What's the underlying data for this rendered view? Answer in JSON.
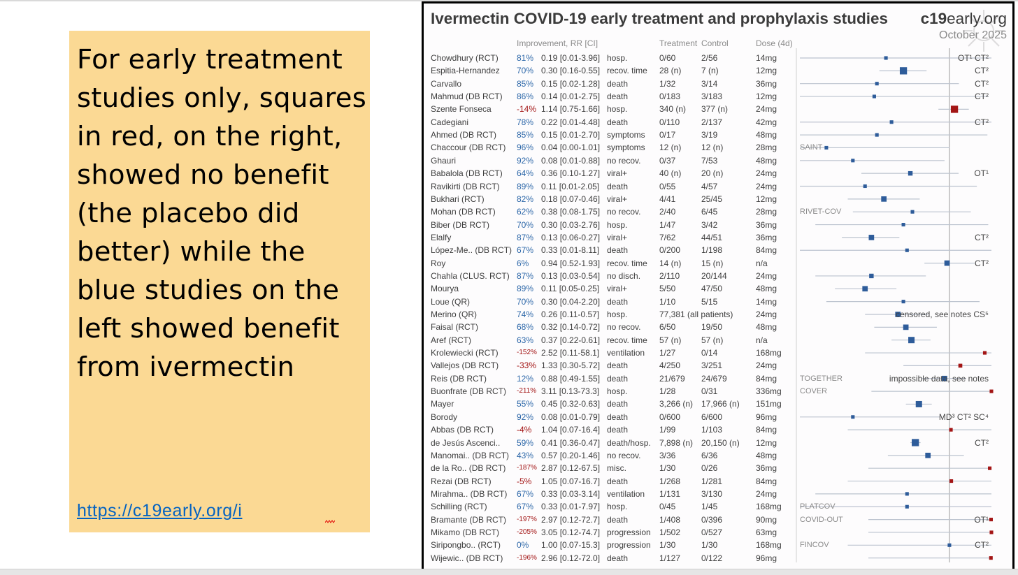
{
  "note": {
    "text": "For early treatment studies only, squares in red, on the right, showed no benefit (the placebo did better) while the blue studies on the left showed benefit from ivermectin",
    "link": "https://c19early.org/i"
  },
  "figure": {
    "title": "Ivermectin COVID-19 early treatment and prophylaxis studies",
    "site_bold": "c19",
    "site_rest": "early.org",
    "date": "October 2025",
    "headers": {
      "improvement": "Improvement, RR [CI]",
      "treatment": "Treatment",
      "control": "Control",
      "dose": "Dose (4d)"
    },
    "colors": {
      "benefit": "#2e5c9a",
      "harm": "#a31515",
      "text": "#3d3d3d",
      "muted": "#8a8a8a"
    },
    "studies": [
      {
        "study": "Chowdhury (RCT)",
        "imp": "81%",
        "rr": "0.19 [0.01-3.96]",
        "outcome": "hosp.",
        "treatment": "0/60",
        "control": "2/56",
        "dose": "14mg",
        "note": "OT¹ CT²",
        "rr_val": 0.19,
        "lo": 0.01,
        "hi": 3.96,
        "weight": 1
      },
      {
        "study": "Espitia-Hernandez",
        "imp": "70%",
        "rr": "0.30 [0.16-0.55]",
        "outcome": "recov. time",
        "treatment": "28 (n)",
        "control": "7 (n)",
        "dose": "12mg",
        "note": "CT²",
        "rr_val": 0.3,
        "lo": 0.16,
        "hi": 0.55,
        "weight": 3
      },
      {
        "study": "Carvallo",
        "imp": "85%",
        "rr": "0.15 [0.02-1.28]",
        "outcome": "death",
        "treatment": "1/32",
        "control": "3/14",
        "dose": "36mg",
        "note": "CT²",
        "rr_val": 0.15,
        "lo": 0.02,
        "hi": 1.28,
        "weight": 1
      },
      {
        "study": "Mahmud (DB RCT)",
        "imp": "86%",
        "rr": "0.14 [0.01-2.75]",
        "outcome": "death",
        "treatment": "0/183",
        "control": "3/183",
        "dose": "12mg",
        "note": "CT²",
        "rr_val": 0.14,
        "lo": 0.01,
        "hi": 2.75,
        "weight": 1
      },
      {
        "study": "Szente Fonseca",
        "imp": "-14%",
        "rr": "1.14 [0.75-1.66]",
        "outcome": "hosp.",
        "treatment": "340 (n)",
        "control": "377 (n)",
        "dose": "24mg",
        "note": "",
        "rr_val": 1.14,
        "lo": 0.75,
        "hi": 1.66,
        "weight": 3
      },
      {
        "study": "Cadegiani",
        "imp": "78%",
        "rr": "0.22 [0.01-4.48]",
        "outcome": "death",
        "treatment": "0/110",
        "control": "2/137",
        "dose": "42mg",
        "note": "CT²",
        "rr_val": 0.22,
        "lo": 0.01,
        "hi": 4.48,
        "weight": 1
      },
      {
        "study": "Ahmed (DB RCT)",
        "imp": "85%",
        "rr": "0.15 [0.01-2.70]",
        "outcome": "symptoms",
        "treatment": "0/17",
        "control": "3/19",
        "dose": "48mg",
        "note": "",
        "rr_val": 0.15,
        "lo": 0.01,
        "hi": 2.7,
        "weight": 1
      },
      {
        "study": "Chaccour (DB RCT)",
        "imp": "96%",
        "rr": "0.04 [0.00-1.01]",
        "outcome": "symptoms",
        "treatment": "12 (n)",
        "control": "12 (n)",
        "dose": "28mg",
        "note": "",
        "tag": "SAINT",
        "rr_val": 0.04,
        "lo": 0.002,
        "hi": 1.01,
        "weight": 1
      },
      {
        "study": "Ghauri",
        "imp": "92%",
        "rr": "0.08 [0.01-0.88]",
        "outcome": "no recov.",
        "treatment": "0/37",
        "control": "7/53",
        "dose": "48mg",
        "note": "",
        "rr_val": 0.08,
        "lo": 0.01,
        "hi": 0.88,
        "weight": 1
      },
      {
        "study": "Babalola (DB RCT)",
        "imp": "64%",
        "rr": "0.36 [0.10-1.27]",
        "outcome": "viral+",
        "treatment": "40 (n)",
        "control": "20 (n)",
        "dose": "24mg",
        "note": "OT¹",
        "rr_val": 0.36,
        "lo": 0.1,
        "hi": 1.27,
        "weight": 1.5
      },
      {
        "study": "Ravikirti (DB RCT)",
        "imp": "89%",
        "rr": "0.11 [0.01-2.05]",
        "outcome": "death",
        "treatment": "0/55",
        "control": "4/57",
        "dose": "24mg",
        "note": "",
        "rr_val": 0.11,
        "lo": 0.01,
        "hi": 2.05,
        "weight": 1
      },
      {
        "study": "Bukhari (RCT)",
        "imp": "82%",
        "rr": "0.18 [0.07-0.46]",
        "outcome": "viral+",
        "treatment": "4/41",
        "control": "25/45",
        "dose": "12mg",
        "note": "",
        "rr_val": 0.18,
        "lo": 0.07,
        "hi": 0.46,
        "weight": 2
      },
      {
        "study": "Mohan (DB RCT)",
        "imp": "62%",
        "rr": "0.38 [0.08-1.75]",
        "outcome": "no recov.",
        "treatment": "2/40",
        "control": "6/45",
        "dose": "28mg",
        "note": "",
        "tag": "RIVET-COV",
        "rr_val": 0.38,
        "lo": 0.08,
        "hi": 1.75,
        "weight": 1
      },
      {
        "study": "Biber (DB RCT)",
        "imp": "70%",
        "rr": "0.30 [0.03-2.76]",
        "outcome": "hosp.",
        "treatment": "1/47",
        "control": "3/42",
        "dose": "36mg",
        "note": "",
        "rr_val": 0.3,
        "lo": 0.03,
        "hi": 2.76,
        "weight": 1
      },
      {
        "study": "Elalfy",
        "imp": "87%",
        "rr": "0.13 [0.06-0.27]",
        "outcome": "viral+",
        "treatment": "7/62",
        "control": "44/51",
        "dose": "36mg",
        "note": "CT²",
        "rr_val": 0.13,
        "lo": 0.06,
        "hi": 0.27,
        "weight": 2
      },
      {
        "study": "López-Me.. (DB RCT)",
        "imp": "67%",
        "rr": "0.33 [0.01-8.11]",
        "outcome": "death",
        "treatment": "0/200",
        "control": "1/198",
        "dose": "84mg",
        "note": "",
        "rr_val": 0.33,
        "lo": 0.01,
        "hi": 8.11,
        "weight": 1
      },
      {
        "study": "Roy",
        "imp": "6%",
        "rr": "0.94 [0.52-1.93]",
        "outcome": "recov. time",
        "treatment": "14 (n)",
        "control": "15 (n)",
        "dose": "n/a",
        "note": "CT²",
        "rr_val": 0.94,
        "lo": 0.52,
        "hi": 1.93,
        "weight": 2
      },
      {
        "study": "Chahla (CLUS. RCT)",
        "imp": "87%",
        "rr": "0.13 [0.03-0.54]",
        "outcome": "no disch.",
        "treatment": "2/110",
        "control": "20/144",
        "dose": "24mg",
        "note": "",
        "rr_val": 0.13,
        "lo": 0.03,
        "hi": 0.54,
        "weight": 1.5
      },
      {
        "study": "Mourya",
        "imp": "89%",
        "rr": "0.11 [0.05-0.25]",
        "outcome": "viral+",
        "treatment": "5/50",
        "control": "47/50",
        "dose": "48mg",
        "note": "",
        "rr_val": 0.11,
        "lo": 0.05,
        "hi": 0.25,
        "weight": 2
      },
      {
        "study": "Loue (QR)",
        "imp": "70%",
        "rr": "0.30 [0.04-2.20]",
        "outcome": "death",
        "treatment": "1/10",
        "control": "5/15",
        "dose": "14mg",
        "note": "",
        "rr_val": 0.3,
        "lo": 0.04,
        "hi": 2.2,
        "weight": 1
      },
      {
        "study": "Merino (QR)",
        "imp": "74%",
        "rr": "0.26 [0.11-0.57]",
        "outcome": "hosp.",
        "treatment": "77,381 (all patients)",
        "control": "",
        "dose": "24mg",
        "note": "censored, see notes CS⁵",
        "rr_val": 0.26,
        "lo": 0.11,
        "hi": 0.57,
        "weight": 2
      },
      {
        "study": "Faisal (RCT)",
        "imp": "68%",
        "rr": "0.32 [0.14-0.72]",
        "outcome": "no recov.",
        "treatment": "6/50",
        "control": "19/50",
        "dose": "48mg",
        "note": "",
        "rr_val": 0.32,
        "lo": 0.14,
        "hi": 0.72,
        "weight": 2
      },
      {
        "study": "Aref (RCT)",
        "imp": "63%",
        "rr": "0.37 [0.22-0.61]",
        "outcome": "recov. time",
        "treatment": "57 (n)",
        "control": "57 (n)",
        "dose": "n/a",
        "note": "",
        "rr_val": 0.37,
        "lo": 0.22,
        "hi": 0.61,
        "weight": 2.5
      },
      {
        "study": "Krolewiecki (RCT)",
        "imp": "-152%",
        "rr": "2.52 [0.11-58.1]",
        "outcome": "ventilation",
        "treatment": "1/27",
        "control": "0/14",
        "dose": "168mg",
        "note": "",
        "rr_val": 2.52,
        "lo": 0.11,
        "hi": 58.1,
        "weight": 1
      },
      {
        "study": "Vallejos (DB RCT)",
        "imp": "-33%",
        "rr": "1.33 [0.30-5.72]",
        "outcome": "death",
        "treatment": "4/250",
        "control": "3/251",
        "dose": "24mg",
        "note": "",
        "rr_val": 1.33,
        "lo": 0.3,
        "hi": 5.72,
        "weight": 1.2
      },
      {
        "study": "Reis (DB RCT)",
        "imp": "12%",
        "rr": "0.88 [0.49-1.55]",
        "outcome": "death",
        "treatment": "21/679",
        "control": "24/679",
        "dose": "84mg",
        "note": "impossible data, see notes",
        "tag": "TOGETHER",
        "rr_val": 0.88,
        "lo": 0.49,
        "hi": 1.55,
        "weight": 2
      },
      {
        "study": "Buonfrate (DB RCT)",
        "imp": "-211%",
        "rr": "3.11 [0.13-73.3]",
        "outcome": "hosp.",
        "treatment": "1/28",
        "control": "0/31",
        "dose": "336mg",
        "note": "",
        "tag": "COVER",
        "rr_val": 3.11,
        "lo": 0.13,
        "hi": 73.3,
        "weight": 1
      },
      {
        "study": "Mayer",
        "imp": "55%",
        "rr": "0.45 [0.32-0.63]",
        "outcome": "death",
        "treatment": "3,266 (n)",
        "control": "17,966 (n)",
        "dose": "151mg",
        "note": "",
        "rr_val": 0.45,
        "lo": 0.32,
        "hi": 0.63,
        "weight": 2.5
      },
      {
        "study": "Borody",
        "imp": "92%",
        "rr": "0.08 [0.01-0.79]",
        "outcome": "death",
        "treatment": "0/600",
        "control": "6/600",
        "dose": "96mg",
        "note": "MD³ CT² SC⁴",
        "rr_val": 0.08,
        "lo": 0.01,
        "hi": 0.79,
        "weight": 1
      },
      {
        "study": "Abbas (DB RCT)",
        "imp": "-4%",
        "rr": "1.04 [0.07-16.4]",
        "outcome": "death",
        "treatment": "1/99",
        "control": "1/103",
        "dose": "84mg",
        "note": "",
        "rr_val": 1.04,
        "lo": 0.07,
        "hi": 16.4,
        "weight": 1
      },
      {
        "study": "de Jesús Ascenci..",
        "imp": "59%",
        "rr": "0.41 [0.36-0.47]",
        "outcome": "death/hosp.",
        "treatment": "7,898 (n)",
        "control": "20,150 (n)",
        "dose": "12mg",
        "note": "CT²",
        "rr_val": 0.41,
        "lo": 0.36,
        "hi": 0.47,
        "weight": 3
      },
      {
        "study": "Manomai.. (DB RCT)",
        "imp": "43%",
        "rr": "0.57 [0.20-1.46]",
        "outcome": "no recov.",
        "treatment": "3/36",
        "control": "6/36",
        "dose": "48mg",
        "note": "",
        "rr_val": 0.57,
        "lo": 0.2,
        "hi": 1.46,
        "weight": 2
      },
      {
        "study": "de la Ro.. (DB RCT)",
        "imp": "-187%",
        "rr": "2.87 [0.12-67.5]",
        "outcome": "misc.",
        "treatment": "1/30",
        "control": "0/26",
        "dose": "36mg",
        "note": "",
        "rr_val": 2.87,
        "lo": 0.12,
        "hi": 67.5,
        "weight": 1
      },
      {
        "study": "Rezai (DB RCT)",
        "imp": "-5%",
        "rr": "1.05 [0.07-16.7]",
        "outcome": "death",
        "treatment": "1/268",
        "control": "1/281",
        "dose": "84mg",
        "note": "",
        "rr_val": 1.05,
        "lo": 0.07,
        "hi": 16.7,
        "weight": 1
      },
      {
        "study": "Mirahma.. (DB RCT)",
        "imp": "67%",
        "rr": "0.33 [0.03-3.14]",
        "outcome": "ventilation",
        "treatment": "1/131",
        "control": "3/130",
        "dose": "24mg",
        "note": "",
        "rr_val": 0.33,
        "lo": 0.03,
        "hi": 3.14,
        "weight": 1
      },
      {
        "study": "Schilling (RCT)",
        "imp": "67%",
        "rr": "0.33 [0.01-7.97]",
        "outcome": "hosp.",
        "treatment": "0/45",
        "control": "1/45",
        "dose": "168mg",
        "note": "",
        "tag": "PLATCOV",
        "rr_val": 0.33,
        "lo": 0.01,
        "hi": 7.97,
        "weight": 1
      },
      {
        "study": "Bramante (DB RCT)",
        "imp": "-197%",
        "rr": "2.97 [0.12-72.7]",
        "outcome": "death",
        "treatment": "1/408",
        "control": "0/396",
        "dose": "90mg",
        "note": "OT¹",
        "tag": "COVID-OUT",
        "rr_val": 2.97,
        "lo": 0.12,
        "hi": 72.7,
        "weight": 1
      },
      {
        "study": "Mikamo (DB RCT)",
        "imp": "-205%",
        "rr": "3.05 [0.12-74.7]",
        "outcome": "progression",
        "treatment": "1/502",
        "control": "0/527",
        "dose": "63mg",
        "note": "",
        "rr_val": 3.05,
        "lo": 0.12,
        "hi": 74.7,
        "weight": 1
      },
      {
        "study": "Siripongbo.. (RCT)",
        "imp": "0%",
        "rr": "1.00 [0.07-15.3]",
        "outcome": "progression",
        "treatment": "1/30",
        "control": "1/30",
        "dose": "168mg",
        "note": "CT²",
        "tag": "FINCOV",
        "rr_val": 1.0,
        "lo": 0.07,
        "hi": 15.3,
        "weight": 1
      },
      {
        "study": "Wijewic.. (DB RCT)",
        "imp": "-196%",
        "rr": "2.96 [0.12-72.0]",
        "outcome": "death",
        "treatment": "1/127",
        "control": "0/122",
        "dose": "96mg",
        "note": "",
        "rr_val": 2.96,
        "lo": 0.12,
        "hi": 72.0,
        "weight": 1
      }
    ]
  },
  "chart_data": {
    "type": "forest",
    "scale": "log",
    "reference_line": 1,
    "x_display_range": [
      0.02,
      3
    ],
    "title": "Ivermectin COVID-19 early treatment and prophylaxis studies"
  }
}
